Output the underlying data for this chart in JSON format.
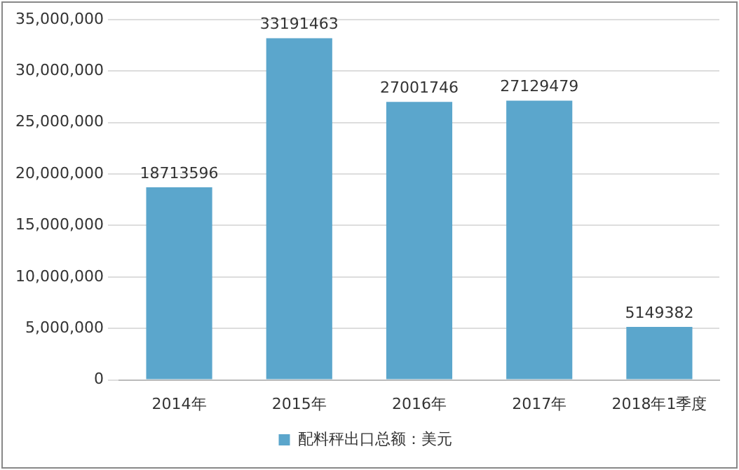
{
  "chart_data": {
    "type": "bar",
    "categories": [
      "2014年",
      "2015年",
      "2016年",
      "2017年",
      "2018年1季度"
    ],
    "series": [
      {
        "name": "配料秤出口总额：美元",
        "color": "#5ba6cc",
        "values": [
          18713596,
          33191463,
          27001746,
          27129479,
          5149382
        ]
      }
    ],
    "ylim": [
      0,
      35000000
    ],
    "yticks": [
      0,
      {
        "value": 5000000,
        "label": "5,000,000"
      },
      {
        "value": 10000000,
        "label": "10,000,000"
      },
      {
        "value": 15000000,
        "label": "15,000,000"
      },
      {
        "value": 20000000,
        "label": "20,000,000"
      },
      {
        "value": 25000000,
        "label": "25,000,000"
      },
      {
        "value": 30000000,
        "label": "30,000,000"
      },
      {
        "value": 35000000,
        "label": "35,000,000"
      }
    ],
    "grid": "y",
    "legend": "bottom",
    "data_labels": true
  }
}
